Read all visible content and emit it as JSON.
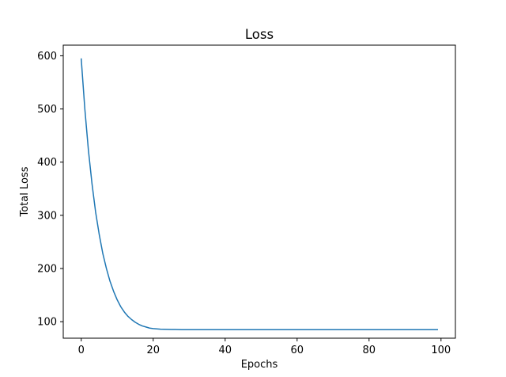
{
  "chart_data": {
    "type": "line",
    "title": "Loss",
    "xlabel": "Epochs",
    "ylabel": "Total Loss",
    "xlim": [
      -5,
      104
    ],
    "ylim": [
      69,
      620
    ],
    "x_ticks": [
      0,
      20,
      40,
      60,
      80,
      100
    ],
    "y_ticks": [
      100,
      200,
      300,
      400,
      500,
      600
    ],
    "grid": false,
    "series": [
      {
        "color": "#1f77b4",
        "x": [
          0,
          1,
          2,
          3,
          4,
          5,
          6,
          7,
          8,
          9,
          10,
          11,
          12,
          13,
          14,
          15,
          16,
          17,
          18,
          19,
          20,
          21,
          22,
          23,
          24,
          25,
          26,
          27,
          28,
          29,
          30,
          31,
          32,
          33,
          34,
          35,
          36,
          37,
          38,
          39,
          40,
          41,
          42,
          43,
          44,
          45,
          46,
          47,
          48,
          49,
          50,
          51,
          52,
          53,
          54,
          55,
          56,
          57,
          58,
          59,
          60,
          61,
          62,
          63,
          64,
          65,
          66,
          67,
          68,
          69,
          70,
          71,
          72,
          73,
          74,
          75,
          76,
          77,
          78,
          79,
          80,
          81,
          82,
          83,
          84,
          85,
          86,
          87,
          88,
          89,
          90,
          91,
          92,
          93,
          94,
          95,
          96,
          97,
          98,
          99
        ],
        "values": [
          594,
          500,
          422,
          359,
          306,
          264,
          228,
          200,
          176,
          157,
          141,
          128,
          118,
          110,
          104,
          99,
          95,
          92,
          90,
          88,
          87,
          86.5,
          86,
          85.7,
          85.5,
          85.4,
          85.3,
          85.2,
          85.1,
          85.1,
          85,
          85,
          85,
          85,
          85,
          85,
          85,
          85,
          85,
          85,
          85,
          85,
          85,
          85,
          85,
          85,
          85,
          85,
          85,
          85,
          85,
          85,
          85,
          85,
          85,
          85,
          85,
          85,
          85,
          85,
          85,
          85,
          85,
          85,
          85,
          85,
          85,
          85,
          85,
          85,
          85,
          85,
          85,
          85,
          85,
          85,
          85,
          85,
          85,
          85,
          85,
          85,
          85,
          85,
          85,
          85,
          85,
          85,
          85,
          85,
          85,
          85,
          85,
          85,
          85,
          85,
          85,
          85,
          85,
          85
        ]
      }
    ]
  }
}
